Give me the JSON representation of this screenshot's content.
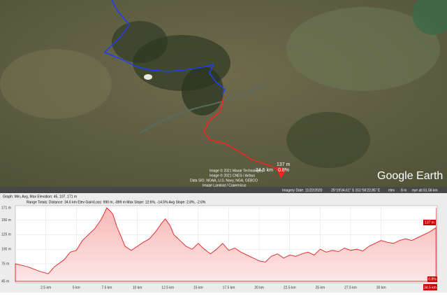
{
  "map": {
    "attribution": [
      "Image © 2021 Maxar Technologies",
      "Image © 2021 CNES / Airbus",
      "Data SIO, NOAA, U.S. Navy, NGA, GEBCO",
      "Image Landsat / Copernicus"
    ],
    "cursor_elevation": "137 m",
    "cursor_distance": "34.5 km",
    "cursor_slope": "0.8%",
    "logo": "Google Earth"
  },
  "status_bar": {
    "imagery_date": "Imagery Date: 11/22/2020",
    "coordinates": "25°19'34.61\" S  151°56'22.85\" E",
    "elev_label": "elev",
    "elev": "8 m",
    "eye_alt": "eye alt  61.56 km"
  },
  "profile_panel": {
    "summary": "Graph: Min, Avg, Max Elevation: 45, 107, 171 m",
    "totals": "Range Totals:  Distance: 34.6 km   Elev Gain/Loss: 990 m, -899 m     Max Slope: 12.6%, -14.5%   Avg Slope: 2.8%, -2.6%"
  },
  "chart_data": {
    "type": "area",
    "color": "#e03030",
    "x": [
      0,
      1,
      2,
      2.7,
      3.2,
      4,
      4.5,
      5,
      5.5,
      6,
      6.5,
      7,
      7.3,
      7.5,
      7.8,
      8,
      8.3,
      8.7,
      9,
      9.5,
      10,
      10.5,
      11,
      11.5,
      12,
      12.3,
      12.7,
      13,
      13.5,
      14,
      14.5,
      15,
      15.5,
      16,
      16.5,
      17,
      17.5,
      18,
      18.5,
      19,
      19.5,
      20,
      20.5,
      21,
      21.5,
      22,
      22.5,
      23,
      23.5,
      24,
      24.5,
      25,
      25.5,
      26,
      26.5,
      27,
      27.5,
      28,
      28.5,
      29,
      29.5,
      30,
      30.5,
      31,
      31.5,
      32,
      32.5,
      33,
      33.5,
      34,
      34.5
    ],
    "values": [
      75,
      70,
      62,
      58,
      70,
      82,
      95,
      98,
      115,
      125,
      135,
      150,
      162,
      171,
      165,
      160,
      140,
      120,
      105,
      98,
      105,
      112,
      118,
      130,
      145,
      152,
      140,
      125,
      115,
      105,
      100,
      110,
      100,
      92,
      100,
      110,
      98,
      102,
      95,
      90,
      85,
      80,
      78,
      88,
      92,
      85,
      90,
      88,
      92,
      95,
      90,
      100,
      95,
      98,
      96,
      102,
      98,
      100,
      97,
      105,
      110,
      115,
      112,
      110,
      115,
      118,
      115,
      120,
      125,
      130,
      137
    ],
    "xlim": [
      0,
      34.6
    ],
    "ylim": [
      45,
      171
    ],
    "xticks": [
      {
        "value": 2.5,
        "label": "2.5 km"
      },
      {
        "value": 5,
        "label": "5 km"
      },
      {
        "value": 7.5,
        "label": "7.5 km"
      },
      {
        "value": 10,
        "label": "10 km"
      },
      {
        "value": 12.5,
        "label": "12.5 km"
      },
      {
        "value": 15,
        "label": "15 km"
      },
      {
        "value": 17.5,
        "label": "17.5 km"
      },
      {
        "value": 20,
        "label": "20 km"
      },
      {
        "value": 22.5,
        "label": "22.5 km"
      },
      {
        "value": 25,
        "label": "25 km"
      },
      {
        "value": 27.5,
        "label": "27.5 km"
      },
      {
        "value": 30,
        "label": "30 km"
      }
    ],
    "yticks": [
      {
        "value": 45,
        "label": "45 m"
      },
      {
        "value": 75,
        "label": "75 m"
      },
      {
        "value": 100,
        "label": "100 m"
      },
      {
        "value": 125,
        "label": "125 m"
      },
      {
        "value": 150,
        "label": "150 m"
      },
      {
        "value": 171,
        "label": "171 m"
      }
    ],
    "grid": true,
    "cursor_elevation": "137 m",
    "cursor_distance": "34.5 km",
    "cursor_slope": "0.8%"
  }
}
